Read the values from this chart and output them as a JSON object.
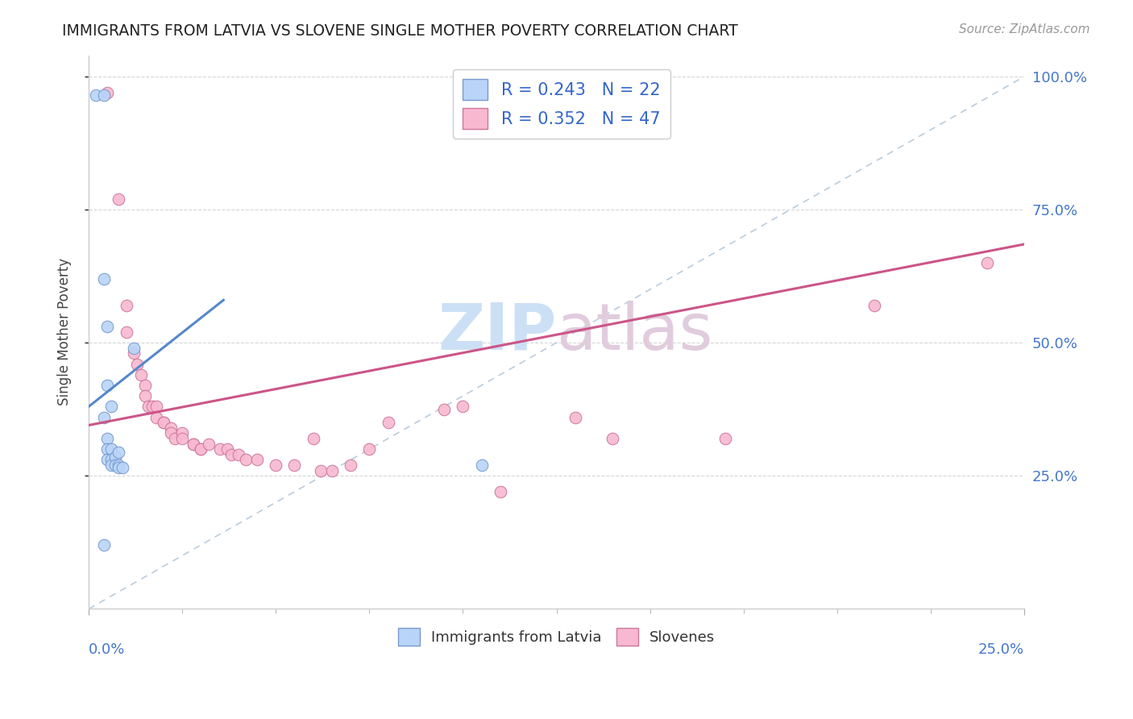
{
  "title": "IMMIGRANTS FROM LATVIA VS SLOVENE SINGLE MOTHER POVERTY CORRELATION CHART",
  "source": "Source: ZipAtlas.com",
  "ylabel": "Single Mother Poverty",
  "ytick_vals": [
    0.25,
    0.5,
    0.75,
    1.0
  ],
  "ytick_labels": [
    "25.0%",
    "50.0%",
    "75.0%",
    "100.0%"
  ],
  "legend_entry1": "R = 0.243   N = 22",
  "legend_entry2": "R = 0.352   N = 47",
  "legend_color1": "#b8d4f8",
  "legend_color2": "#f8b8d0",
  "scatter_color_latvia": "#b8d4f8",
  "scatter_color_slovene": "#f8b8d0",
  "scatter_edge_latvia": "#7799cc",
  "scatter_edge_slovene": "#cc7799",
  "line_color_latvia": "#5588cc",
  "line_color_slovene": "#cc5588",
  "dashed_line_color": "#bbccdd",
  "watermark_color": "#ddeeff",
  "label_latvia": "Immigrants from Latvia",
  "label_slovene": "Slovenes",
  "xmin": 0.0,
  "xmax": 0.25,
  "ymin": 0.0,
  "ymax": 1.04,
  "latvia_x": [
    0.002,
    0.004,
    0.004,
    0.004,
    0.004,
    0.005,
    0.005,
    0.005,
    0.005,
    0.005,
    0.006,
    0.006,
    0.006,
    0.006,
    0.007,
    0.007,
    0.008,
    0.008,
    0.008,
    0.009,
    0.012,
    0.105
  ],
  "latvia_y": [
    0.965,
    0.965,
    0.62,
    0.36,
    0.12,
    0.53,
    0.42,
    0.32,
    0.3,
    0.28,
    0.38,
    0.3,
    0.28,
    0.27,
    0.285,
    0.27,
    0.295,
    0.27,
    0.265,
    0.265,
    0.49,
    0.27
  ],
  "slovene_x": [
    0.005,
    0.008,
    0.01,
    0.01,
    0.012,
    0.013,
    0.014,
    0.015,
    0.015,
    0.016,
    0.017,
    0.018,
    0.018,
    0.02,
    0.02,
    0.022,
    0.022,
    0.023,
    0.025,
    0.025,
    0.028,
    0.028,
    0.03,
    0.03,
    0.032,
    0.035,
    0.037,
    0.038,
    0.04,
    0.042,
    0.045,
    0.05,
    0.055,
    0.06,
    0.062,
    0.065,
    0.07,
    0.075,
    0.08,
    0.095,
    0.1,
    0.11,
    0.13,
    0.14,
    0.17,
    0.21,
    0.24
  ],
  "slovene_y": [
    0.97,
    0.77,
    0.57,
    0.52,
    0.48,
    0.46,
    0.44,
    0.42,
    0.4,
    0.38,
    0.38,
    0.38,
    0.36,
    0.35,
    0.35,
    0.34,
    0.33,
    0.32,
    0.33,
    0.32,
    0.31,
    0.31,
    0.3,
    0.3,
    0.31,
    0.3,
    0.3,
    0.29,
    0.29,
    0.28,
    0.28,
    0.27,
    0.27,
    0.32,
    0.26,
    0.26,
    0.27,
    0.3,
    0.35,
    0.375,
    0.38,
    0.22,
    0.36,
    0.32,
    0.32,
    0.57,
    0.65
  ],
  "latvia_line_x": [
    0.0,
    0.036
  ],
  "latvia_line_y": [
    0.38,
    0.58
  ],
  "slovene_line_x": [
    0.0,
    0.25
  ],
  "slovene_line_y": [
    0.345,
    0.685
  ]
}
